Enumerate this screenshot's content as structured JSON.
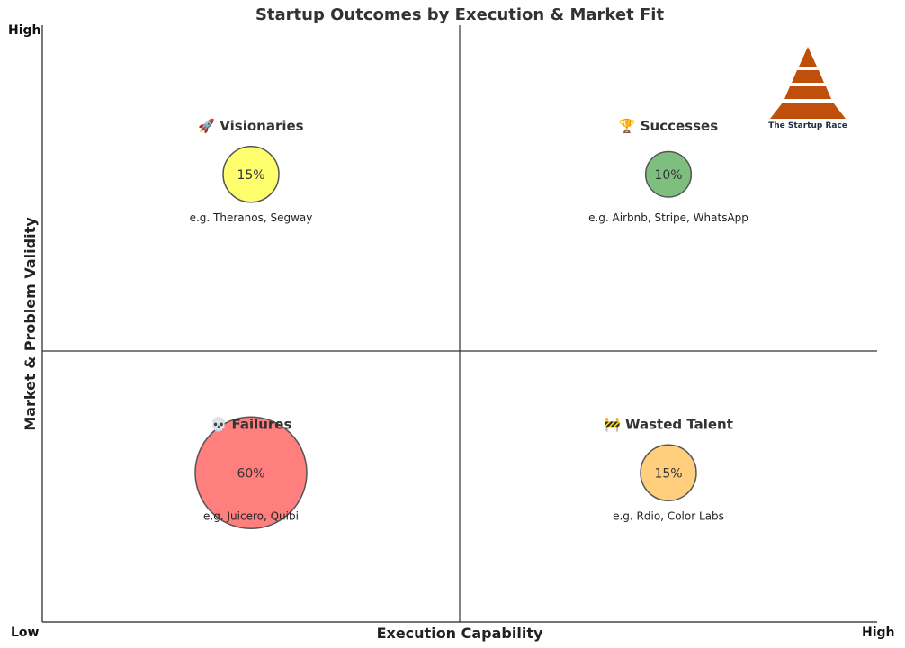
{
  "chart_data": {
    "type": "scatter",
    "title": "Startup Outcomes by Execution & Market Fit",
    "xlabel": "Execution Capability",
    "ylabel": "Market & Problem Validity",
    "x_tick_low": "Low",
    "x_tick_high": "High",
    "y_tick_high": "High",
    "grid": false,
    "xlim": [
      0,
      1
    ],
    "ylim": [
      0,
      1
    ],
    "quadrants": [
      {
        "key": "visionaries",
        "label": "🚀 Visionaries",
        "value": 15,
        "value_label": "15%",
        "example": "e.g. Theranos, Segway",
        "x": 0.25,
        "y": 0.75,
        "color": "#ffff66"
      },
      {
        "key": "successes",
        "label": "🏆 Successes",
        "value": 10,
        "value_label": "10%",
        "example": "e.g. Airbnb, Stripe, WhatsApp",
        "x": 0.75,
        "y": 0.75,
        "color": "#77bb77"
      },
      {
        "key": "failures",
        "label": "💀 Failures",
        "value": 60,
        "value_label": "60%",
        "example": "e.g. Juicero, Quibi",
        "x": 0.25,
        "y": 0.25,
        "color": "#ff7777"
      },
      {
        "key": "wasted-talent",
        "label": "🚧 Wasted Talent",
        "value": 15,
        "value_label": "15%",
        "example": "e.g. Rdio, Color Labs",
        "x": 0.75,
        "y": 0.25,
        "color": "#ffcc77"
      }
    ]
  },
  "logo": {
    "text": "The Startup Race",
    "color": "#bf4f0a"
  }
}
